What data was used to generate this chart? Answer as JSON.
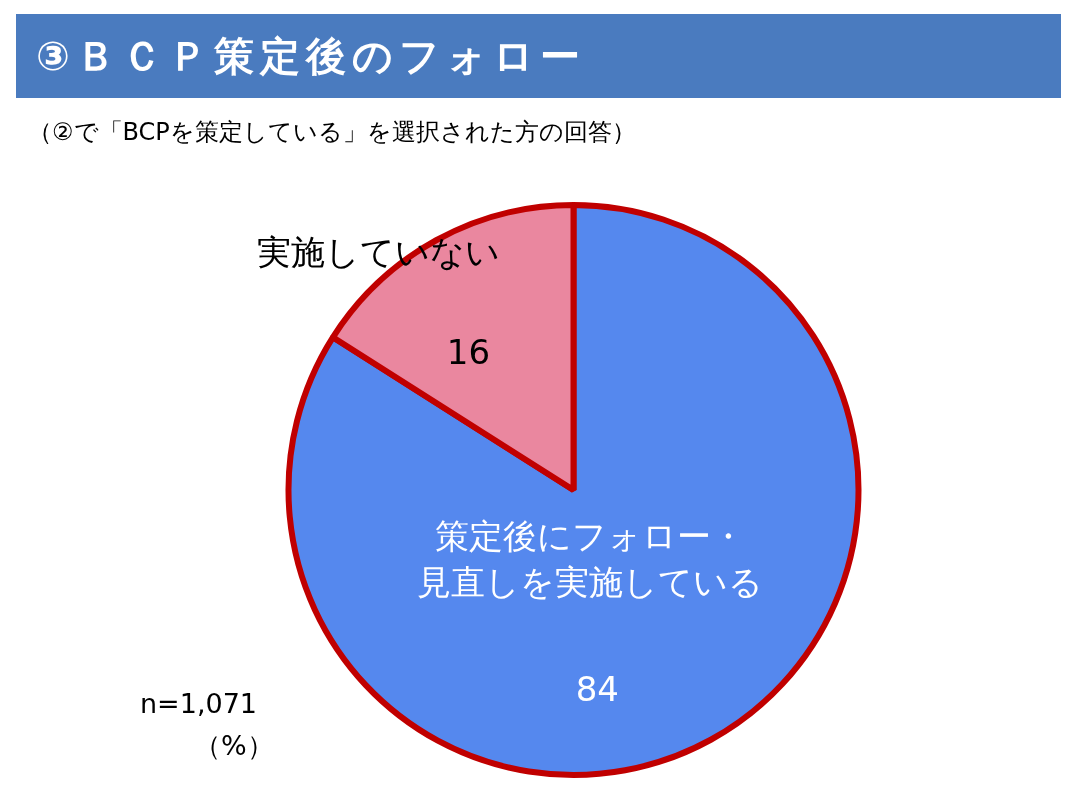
{
  "chart_data": {
    "type": "pie",
    "title": "③ＢＣＰ策定後のフォロー",
    "subtitle": "（②で「BCPを策定している」を選択された方の回答）",
    "categories": [
      "策定後にフォロー・見直しを実施している",
      "実施していない"
    ],
    "values": [
      84,
      16
    ],
    "colors": [
      "#5588ee",
      "#ea879f"
    ],
    "data_labels": true,
    "legend": false,
    "annotations": [
      "n=1,071",
      "（%）"
    ]
  }
}
